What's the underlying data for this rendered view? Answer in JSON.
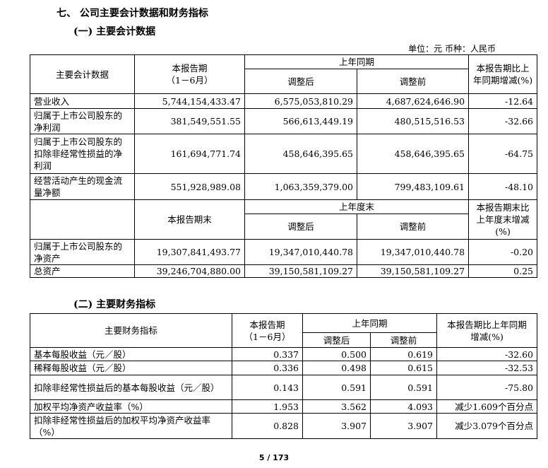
{
  "section_title": "七、 公司主要会计数据和财务指标",
  "sub1_title": "(一) 主要会计数据",
  "unit": "单位：元  币种：人民币",
  "t1": {
    "h_item": "主要会计数据",
    "h_cur": "本报告期\n（1－6月）",
    "h_prev": "上年同期",
    "h_adj": "调整后",
    "h_pre": "调整前",
    "h_chg": "本报告期比上年同期增减(%)",
    "rows": [
      [
        "营业收入",
        "5,744,154,433.47",
        "6,575,053,810.29",
        "4,687,624,646.90",
        "-12.64"
      ],
      [
        "归属于上市公司股东的净利润",
        "381,549,551.55",
        "566,613,449.19",
        "480,515,516.53",
        "-32.66"
      ],
      [
        "归属于上市公司股东的扣除非经常性损益的净利润",
        "161,694,771.74",
        "458,646,395.65",
        "458,646,395.65",
        "-64.75"
      ],
      [
        "经营活动产生的现金流量净额",
        "551,928,989.08",
        "1,063,359,379.00",
        "799,483,109.61",
        "-48.10"
      ]
    ],
    "h2_cur": "本报告期末",
    "h2_prev": "上年度末",
    "h2_adj": "调整后",
    "h2_pre": "调整前",
    "h2_chg": "本报告期末比上年度末增减(%)",
    "rows2": [
      [
        "归属于上市公司股东的净资产",
        "19,307,841,493.77",
        "19,347,010,440.78",
        "19,347,010,440.78",
        "-0.20"
      ],
      [
        "总资产",
        "39,246,704,880.00",
        "39,150,581,109.27",
        "39,150,581,109.27",
        "0.25"
      ]
    ]
  },
  "sub2_title": "(二) 主要财务指标",
  "t2": {
    "h_item": "主要财务指标",
    "h_cur": "本报告期\n（1－6月）",
    "h_prev": "上年同期",
    "h_adj": "调整后",
    "h_pre": "调整前",
    "h_chg": "本报告期比上年同期\n增减(%)",
    "rows": [
      [
        "基本每股收益（元／股）",
        "0.337",
        "0.500",
        "0.619",
        "-32.60"
      ],
      [
        "稀释每股收益（元／股）",
        "0.336",
        "0.498",
        "0.615",
        "-32.53"
      ],
      [
        "扣除非经常性损益后的基本每股收益（元／股）",
        "0.143",
        "0.591",
        "0.591",
        "-75.80"
      ],
      [
        "加权平均净资产收益率（%）",
        "1.953",
        "3.562",
        "4.093",
        "减少1.609个百分点"
      ],
      [
        "扣除非经常性损益后的加权平均净资产收益率（%）",
        "0.828",
        "3.907",
        "3.907",
        "减少3.079个百分点"
      ]
    ]
  },
  "page_number": "5 / 173"
}
